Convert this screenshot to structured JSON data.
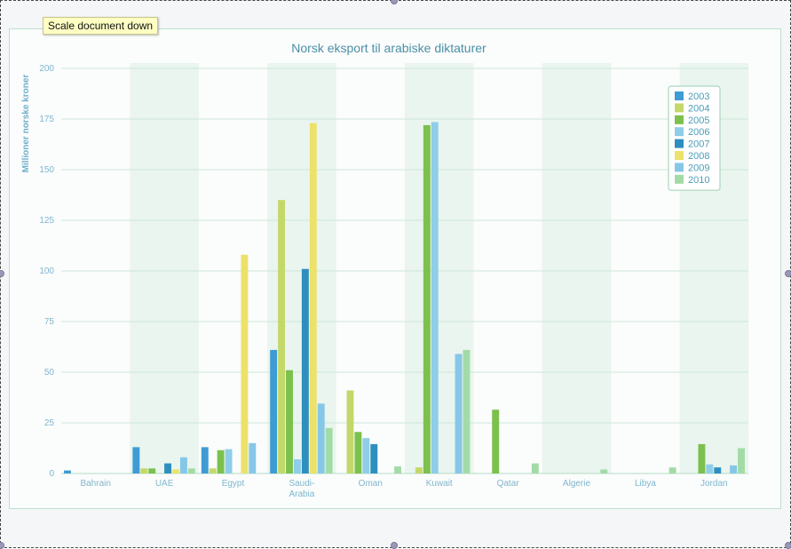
{
  "toolbar": {
    "tooltip": "Scale document down"
  },
  "chart_data": {
    "type": "bar",
    "title": "Norsk eksport til arabiske diktaturer",
    "ylabel": "Millioner norske kroner",
    "xlabel": "",
    "ylim": [
      0,
      200
    ],
    "yticks": [
      "0",
      "25",
      "50",
      "75",
      "100",
      "125",
      "150",
      "175",
      "200"
    ],
    "categories": [
      "Bahrain",
      "UAE",
      "Egypt",
      "Saudi-Arabia",
      "Oman",
      "Kuwait",
      "Qatar",
      "Algerie",
      "Libya",
      "Jordan"
    ],
    "category_lines": [
      [
        "Bahrain"
      ],
      [
        "UAE"
      ],
      [
        "Egypt"
      ],
      [
        "Saudi-",
        "Arabia"
      ],
      [
        "Oman"
      ],
      [
        "Kuwait"
      ],
      [
        "Qatar"
      ],
      [
        "Algerie"
      ],
      [
        "Libya"
      ],
      [
        "Jordan"
      ]
    ],
    "legend_position": "top-right",
    "grid": true,
    "series": [
      {
        "name": "2003",
        "color": "#3f9bd3",
        "values": [
          1.5,
          13,
          13,
          61,
          0,
          0,
          0,
          0,
          0,
          0
        ]
      },
      {
        "name": "2004",
        "color": "#c4d86a",
        "values": [
          0,
          2.5,
          2.5,
          135,
          41,
          3,
          0,
          0,
          0,
          0
        ]
      },
      {
        "name": "2005",
        "color": "#7cc04e",
        "values": [
          0,
          2.5,
          11.5,
          51,
          20.5,
          172,
          31.5,
          0,
          0,
          14.5
        ]
      },
      {
        "name": "2006",
        "color": "#8fcde8",
        "values": [
          0,
          0,
          12,
          7,
          17.5,
          173.5,
          0,
          0,
          0,
          4.5
        ]
      },
      {
        "name": "2007",
        "color": "#2e8fbf",
        "values": [
          0,
          5,
          0,
          101,
          14.5,
          0,
          0,
          0,
          0,
          3
        ]
      },
      {
        "name": "2008",
        "color": "#ece26a",
        "values": [
          0,
          2,
          108,
          173,
          0,
          0,
          0,
          0,
          0,
          0
        ]
      },
      {
        "name": "2009",
        "color": "#86c7e8",
        "values": [
          0,
          8,
          15,
          34.5,
          0,
          59,
          0,
          0,
          0,
          4
        ]
      },
      {
        "name": "2010",
        "color": "#a3dba6",
        "values": [
          0,
          2.5,
          0,
          22.5,
          3.5,
          61,
          5,
          2,
          3,
          12.5
        ]
      }
    ]
  }
}
